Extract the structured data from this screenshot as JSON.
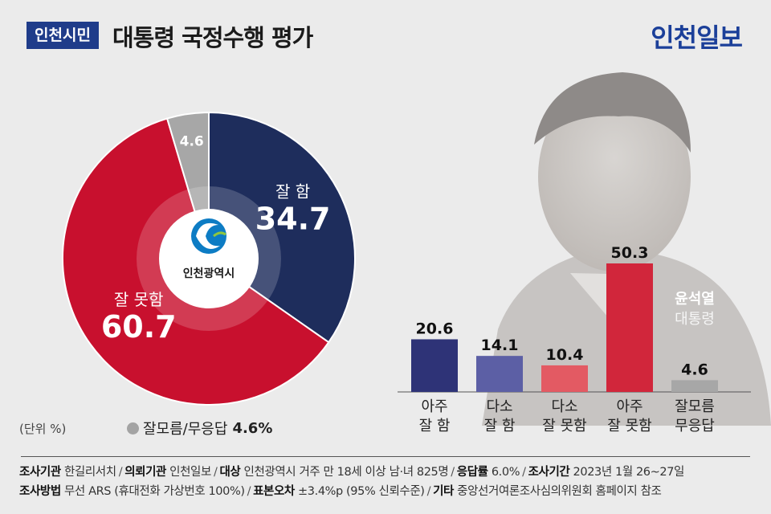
{
  "header": {
    "tag": "인천시민",
    "title": "대통령 국정수행 평가",
    "logo": "인천일보"
  },
  "emblem": {
    "text": "인천광역시"
  },
  "person": {
    "name": "윤석열",
    "role": "대통령"
  },
  "unit_label": "(단위 %)",
  "dk_legend": {
    "label": "잘모름/무응답",
    "value": "4.6%"
  },
  "colors": {
    "good": "#1e2d5c",
    "bad": "#c8102e",
    "dk": "#a7a7a7",
    "very_good": "#2e3377",
    "some_good": "#5c5fa5",
    "some_bad": "#e35a63",
    "very_bad": "#d1263b",
    "accent": "#1f3c8a"
  },
  "chart_data": [
    {
      "type": "pie",
      "labels": [
        "잘 함",
        "잘 못함",
        "잘모름/무응답"
      ],
      "values": [
        34.7,
        60.7,
        4.6
      ],
      "value_labels": [
        "34.7",
        "60.7",
        "4.6"
      ],
      "title": "",
      "legend": "none"
    },
    {
      "type": "bar",
      "categories": [
        [
          "아주",
          "잘 함"
        ],
        [
          "다소",
          "잘 함"
        ],
        [
          "다소",
          "잘 못함"
        ],
        [
          "아주",
          "잘 못함"
        ],
        [
          "잘모름",
          "무응답"
        ]
      ],
      "values": [
        20.6,
        14.1,
        10.4,
        50.3,
        4.6
      ],
      "value_labels": [
        "20.6",
        "14.1",
        "10.4",
        "50.3",
        "4.6"
      ],
      "xlabel": "",
      "ylabel": "",
      "grid": false
    }
  ],
  "footer": {
    "row1": [
      {
        "k": "조사기관",
        "v": "한길리서치"
      },
      {
        "k": "의뢰기관",
        "v": "인천일보"
      },
      {
        "k": "대상",
        "v": "인천광역시 거주 만 18세 이상 남·녀 825명"
      },
      {
        "k": "응답률",
        "v": "6.0%"
      },
      {
        "k": "조사기간",
        "v": "2023년 1월 26~27일"
      }
    ],
    "row2": [
      {
        "k": "조사방법",
        "v": "무선 ARS (휴대전화 가상번호 100%)"
      },
      {
        "k": "표본오차",
        "v": "±3.4%p (95% 신뢰수준)"
      },
      {
        "k": "기타",
        "v": "중앙선거여론조사심의위원회 홈페이지 참조"
      }
    ]
  }
}
